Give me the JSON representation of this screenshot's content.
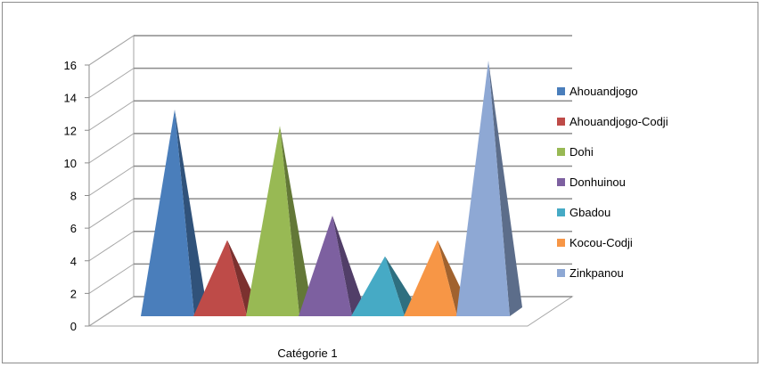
{
  "chart_data": {
    "type": "bar",
    "style": "3d-pyramid",
    "categories": [
      "Catégorie 1"
    ],
    "series": [
      {
        "name": "Ahouandjogo",
        "values": [
          13
        ],
        "color": "#4a7ebb"
      },
      {
        "name": "Ahouandjogo-Codji",
        "values": [
          5
        ],
        "color": "#be4b48"
      },
      {
        "name": "Dohi",
        "values": [
          12
        ],
        "color": "#98b954"
      },
      {
        "name": "Donhuinou",
        "values": [
          6.5
        ],
        "color": "#7d60a0"
      },
      {
        "name": "Gbadou",
        "values": [
          4
        ],
        "color": "#46aac5"
      },
      {
        "name": "Kocou-Codji",
        "values": [
          5
        ],
        "color": "#f79646"
      },
      {
        "name": "Zinkpanou",
        "values": [
          16
        ],
        "color": "#8ea8d4"
      }
    ],
    "ylim": [
      0,
      16
    ],
    "yticks": [
      "0",
      "2",
      "4",
      "6",
      "8",
      "10",
      "12",
      "14",
      "16"
    ],
    "grid": true,
    "legend": "right"
  }
}
